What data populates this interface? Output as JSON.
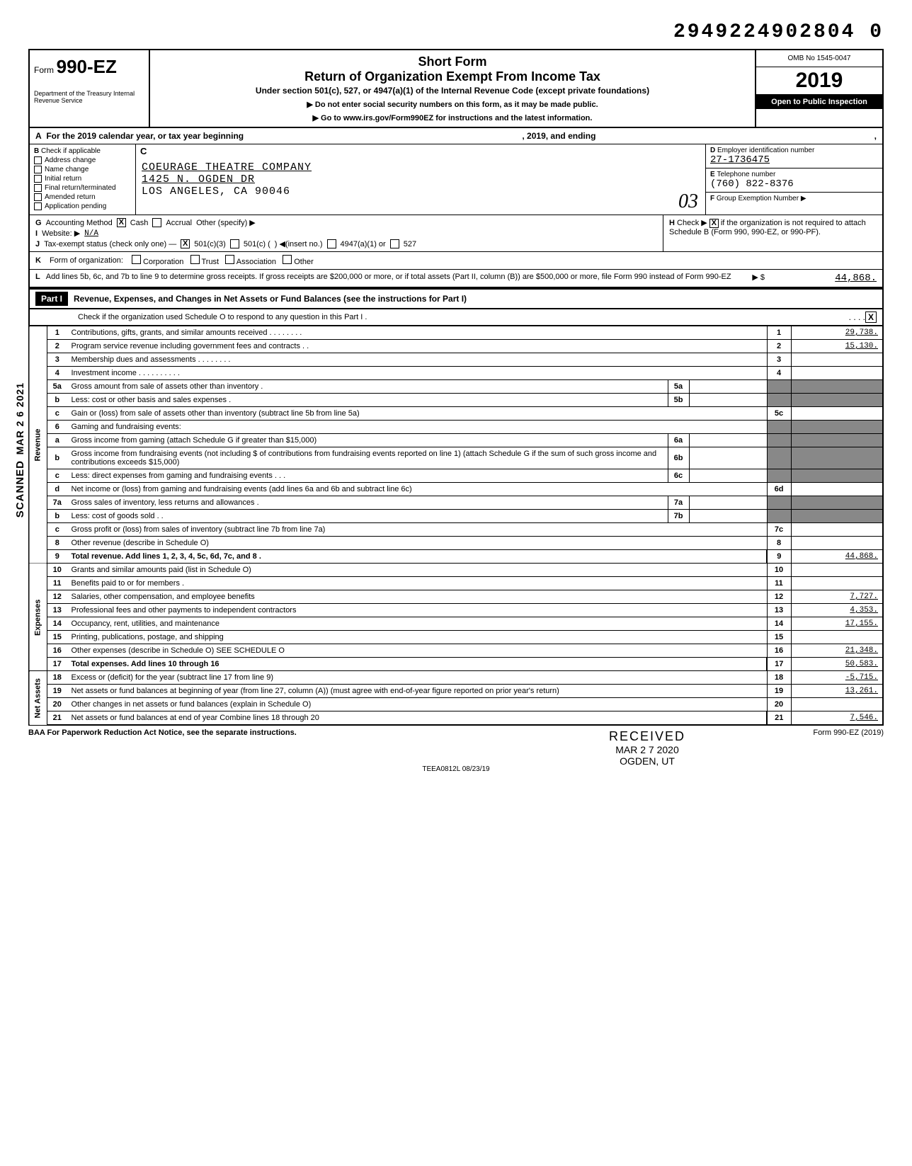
{
  "top_code": "2949224902804  0",
  "form": {
    "prefix": "Form",
    "number": "990-EZ",
    "dept": "Department of the Treasury\nInternal Revenue Service",
    "title1": "Short Form",
    "title2": "Return of Organization Exempt From Income Tax",
    "subtitle": "Under section 501(c), 527, or 4947(a)(1) of the Internal Revenue Code (except private foundations)",
    "note1": "▶ Do not enter social security numbers on this form, as it may be made public.",
    "note2": "▶ Go to www.irs.gov/Form990EZ for instructions and the latest information.",
    "omb": "OMB No 1545-0047",
    "year": "2019",
    "open": "Open to Public Inspection"
  },
  "line_a": {
    "label": "A",
    "text": "For the 2019 calendar year, or tax year beginning",
    "mid": ", 2019, and ending",
    "end": ","
  },
  "section_b": {
    "label": "B",
    "header": "Check if applicable",
    "items": [
      "Address change",
      "Name change",
      "Initial return",
      "Final return/terminated",
      "Amended return",
      "Application pending"
    ]
  },
  "section_c": {
    "label": "C",
    "org_name": "COEURAGE THEATRE COMPANY",
    "addr1": "1425 N. OGDEN DR",
    "addr2": "LOS ANGELES, CA 90046"
  },
  "section_d": {
    "label": "D",
    "text": "Employer identification number",
    "value": "27-1736475"
  },
  "section_e": {
    "label": "E",
    "text": "Telephone number",
    "value": "(760) 822-8376"
  },
  "section_f": {
    "label": "F",
    "text": "Group Exemption Number ▶",
    "hand": "03"
  },
  "row_g": {
    "label": "G",
    "text": "Accounting Method",
    "cash": "Cash",
    "accrual": "Accrual",
    "other": "Other (specify) ▶",
    "cash_checked": "X"
  },
  "row_h": {
    "label": "H",
    "text1": "Check ▶",
    "text2": "if the organization is not required to attach Schedule B (Form 990, 990-EZ, or 990-PF).",
    "checked": "X"
  },
  "row_i": {
    "label": "I",
    "text": "Website: ▶",
    "value": "N/A"
  },
  "row_j": {
    "label": "J",
    "text": "Tax-exempt status (check only one) —",
    "opt1": "501(c)(3)",
    "opt1_checked": "X",
    "opt2": "501(c) (",
    "opt2b": ") ◀(insert no.)",
    "opt3": "4947(a)(1) or",
    "opt4": "527"
  },
  "row_k": {
    "label": "K",
    "text": "Form of organization:",
    "opts": [
      "Corporation",
      "Trust",
      "Association",
      "Other"
    ]
  },
  "row_l": {
    "label": "L",
    "text": "Add lines 5b, 6c, and 7b to line 9 to determine gross receipts. If gross receipts are $200,000 or more, or if total assets (Part II, column (B)) are $500,000 or more, file Form 990 instead of Form 990-EZ",
    "arrow": "▶ $",
    "value": "44,868."
  },
  "part1": {
    "header": "Part I",
    "title": "Revenue, Expenses, and Changes in Net Assets or Fund Balances (see the instructions for Part I)",
    "sub": "Check if the organization used Schedule O to respond to any question in this Part I .",
    "sched_o_checked": "X"
  },
  "side_labels": {
    "revenue": "Revenue",
    "expenses": "Expenses",
    "netassets": "Net Assets",
    "scanned": "SCANNED",
    "date": "MAR 2 6 2021"
  },
  "lines": [
    {
      "n": "1",
      "desc": "Contributions, gifts, grants, and similar amounts received . . . . . . . .",
      "rn": "1",
      "amt": "29,738.",
      "undl": true
    },
    {
      "n": "2",
      "desc": "Program service revenue including government fees and contracts . .",
      "rn": "2",
      "amt": "15,130.",
      "undl": true
    },
    {
      "n": "3",
      "desc": "Membership dues and assessments        . . . . . . . .",
      "rn": "3",
      "amt": ""
    },
    {
      "n": "4",
      "desc": "Investment income        . . .        . . . . . . .",
      "rn": "4",
      "amt": ""
    },
    {
      "n": "5a",
      "desc": "Gross amount from sale of assets other than inventory  .",
      "mid_n": "5a",
      "mid_v": "",
      "rn": "",
      "amt": "",
      "shaded": true
    },
    {
      "n": "b",
      "desc": "Less: cost or other basis and sales expenses  .",
      "mid_n": "5b",
      "mid_v": "",
      "rn": "",
      "amt": "",
      "shaded": true,
      "sub": true
    },
    {
      "n": "c",
      "desc": "Gain or (loss) from sale of assets other than inventory (subtract line 5b from line 5a)",
      "rn": "5c",
      "amt": "",
      "sub": true
    },
    {
      "n": "6",
      "desc": "Gaming and fundraising events:",
      "rn": "",
      "amt": "",
      "shaded": true
    },
    {
      "n": "a",
      "desc": "Gross income from gaming (attach Schedule G if greater than $15,000)",
      "mid_n": "6a",
      "mid_v": "",
      "rn": "",
      "amt": "",
      "shaded": true,
      "sub": true
    },
    {
      "n": "b",
      "desc": "Gross income from fundraising events (not including $                    of contributions from fundraising events reported on line 1) (attach Schedule G if the sum of such gross income and contributions exceeds $15,000)",
      "mid_n": "6b",
      "mid_v": "",
      "rn": "",
      "amt": "",
      "shaded": true,
      "sub": true
    },
    {
      "n": "c",
      "desc": "Less: direct expenses from gaming and fundraising events  . . .",
      "mid_n": "6c",
      "mid_v": "",
      "rn": "",
      "amt": "",
      "shaded": true,
      "sub": true
    },
    {
      "n": "d",
      "desc": "Net income or (loss) from gaming and fundraising events (add lines 6a and 6b and subtract line 6c)",
      "rn": "6d",
      "amt": "",
      "sub": true
    },
    {
      "n": "7a",
      "desc": "Gross sales of inventory, less returns and allowances  .",
      "mid_n": "7a",
      "mid_v": "",
      "rn": "",
      "amt": "",
      "shaded": true
    },
    {
      "n": "b",
      "desc": "Less: cost of goods sold        . .",
      "mid_n": "7b",
      "mid_v": "",
      "rn": "",
      "amt": "",
      "shaded": true,
      "sub": true
    },
    {
      "n": "c",
      "desc": "Gross profit or (loss) from sales of inventory (subtract line 7b from line 7a)",
      "rn": "7c",
      "amt": "",
      "sub": true
    },
    {
      "n": "8",
      "desc": "Other revenue (describe in Schedule O)",
      "rn": "8",
      "amt": ""
    },
    {
      "n": "9",
      "desc": "Total revenue. Add lines 1, 2, 3, 4, 5c, 6d, 7c, and 8 .",
      "rn": "9",
      "amt": "44,868.",
      "bold": true,
      "arrow": true,
      "undl": true
    },
    {
      "n": "10",
      "desc": "Grants and similar amounts paid (list in Schedule O)",
      "rn": "10",
      "amt": ""
    },
    {
      "n": "11",
      "desc": "Benefits paid to or for members .",
      "rn": "11",
      "amt": ""
    },
    {
      "n": "12",
      "desc": "Salaries, other compensation, and employee benefits",
      "rn": "12",
      "amt": "7,727.",
      "undl": true
    },
    {
      "n": "13",
      "desc": "Professional fees and other payments to independent contractors",
      "rn": "13",
      "amt": "4,353.",
      "undl": true
    },
    {
      "n": "14",
      "desc": "Occupancy, rent, utilities, and maintenance",
      "rn": "14",
      "amt": "17,155.",
      "undl": true
    },
    {
      "n": "15",
      "desc": "Printing, publications, postage, and shipping",
      "rn": "15",
      "amt": ""
    },
    {
      "n": "16",
      "desc": "Other expenses (describe in Schedule O)                                          SEE SCHEDULE O",
      "rn": "16",
      "amt": "21,348.",
      "undl": true
    },
    {
      "n": "17",
      "desc": "Total expenses. Add lines 10 through 16",
      "rn": "17",
      "amt": "50,583.",
      "bold": true,
      "arrow": true,
      "undl": true
    },
    {
      "n": "18",
      "desc": "Excess or (deficit) for the year (subtract line 17 from line 9)",
      "rn": "18",
      "amt": "-5,715.",
      "undl": true
    },
    {
      "n": "19",
      "desc": "Net assets or fund balances at beginning of year (from line 27, column (A)) (must agree with end-of-year figure reported on prior year's return)",
      "rn": "19",
      "amt": "13,261.",
      "undl": true
    },
    {
      "n": "20",
      "desc": "Other changes in net assets or fund balances (explain in Schedule O)",
      "rn": "20",
      "amt": ""
    },
    {
      "n": "21",
      "desc": "Net assets or fund balances at end of year  Combine lines 18 through 20",
      "rn": "21",
      "amt": "7,546.",
      "arrow": true,
      "undl": true
    }
  ],
  "section_breaks": {
    "revenue_end": 16,
    "expenses_end": 24
  },
  "footer": {
    "left": "BAA  For Paperwork Reduction Act Notice, see the separate instructions.",
    "mid": "TEEA0812L  08/23/19",
    "right": "Form 990-EZ (2019)"
  },
  "received_stamp": {
    "rc": "RECEIVED",
    "date": "MAR 2 7 2020",
    "loc": "OGDEN, UT"
  },
  "colors": {
    "text": "#000000",
    "bg": "#ffffff",
    "shade": "#888888",
    "border": "#000000"
  }
}
